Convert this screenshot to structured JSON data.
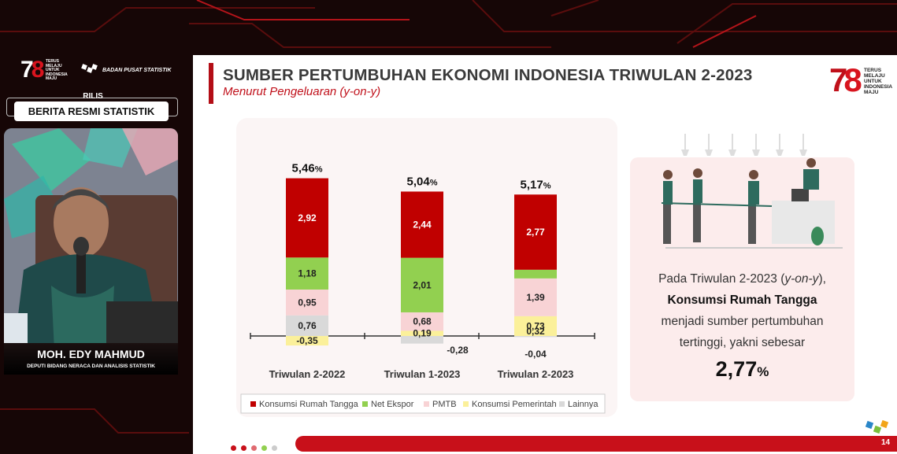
{
  "broadcast": {
    "logo_number": "78",
    "logo_tagline": [
      "TERUS",
      "MELAJU",
      "UNTUK",
      "INDONESIA",
      "MAJU"
    ],
    "org_name": "BADAN PUSAT STATISTIK",
    "rilis_label": "RILIS",
    "program_label": "BERITA RESMI STATISTIK",
    "speaker_name": "MOH. EDY MAHMUD",
    "speaker_title": "DEPUTI BIDANG NERACA DAN ANALISIS STATISTIK"
  },
  "slide": {
    "title": "SUMBER PERTUMBUHAN EKONOMI INDONESIA TRIWULAN 2-2023",
    "subtitle": "Menurut Pengeluaran (y-on-y)",
    "logo_number": "78",
    "logo_tagline": [
      "TERUS",
      "MELAJU",
      "UNTUK",
      "INDONESIA",
      "MAJU"
    ],
    "page_number": "14",
    "info": {
      "line1_prefix": "Pada Triwulan 2-2023 (",
      "line1_italic": "y-on-y",
      "line1_suffix": "),",
      "line2": "Konsumsi Rumah Tangga",
      "line3": "menjadi sumber pertumbuhan",
      "line4": "tertinggi, yakni sebesar",
      "value": "2,77",
      "value_unit": "%"
    }
  },
  "chart_data": {
    "type": "bar",
    "stacked": true,
    "categories": [
      "Triwulan 2-2022",
      "Triwulan 1-2023",
      "Triwulan 2-2023"
    ],
    "totals": [
      {
        "value": "5,46",
        "unit": "%"
      },
      {
        "value": "5,04",
        "unit": "%"
      },
      {
        "value": "5,17",
        "unit": "%"
      }
    ],
    "series": [
      {
        "name": "Konsumsi Rumah Tangga",
        "color": "#c00000",
        "values": [
          2.92,
          2.44,
          2.77
        ],
        "labels": [
          "2,92",
          "2,44",
          "2,77"
        ]
      },
      {
        "name": "Net Ekspor",
        "color": "#92d050",
        "values": [
          1.18,
          2.01,
          0.32
        ],
        "labels": [
          "1,18",
          "2,01",
          ""
        ]
      },
      {
        "name": "PMTB",
        "color": "#f8d3d5",
        "values": [
          0.95,
          0.68,
          1.39
        ],
        "labels": [
          "0,95",
          "0,68",
          "1,39"
        ]
      },
      {
        "name": "Konsumsi Pemerintah",
        "color": "#fbf09a",
        "values": [
          -0.35,
          0.19,
          0.73
        ],
        "labels": [
          "-0,35",
          "0,19",
          "0,73"
        ]
      },
      {
        "name": "Lainnya",
        "color": "#d9d9d9",
        "values": [
          0.76,
          -0.28,
          -0.04
        ],
        "labels": [
          "0,76",
          "-0,28",
          "-0,04"
        ]
      }
    ],
    "extra_labels": [
      "0,32"
    ],
    "legend_position": "bottom",
    "grid": false
  },
  "colors": {
    "accent": "#c8101a",
    "slide_bg": "#ffffff",
    "broadcast_bg": "#160606"
  }
}
